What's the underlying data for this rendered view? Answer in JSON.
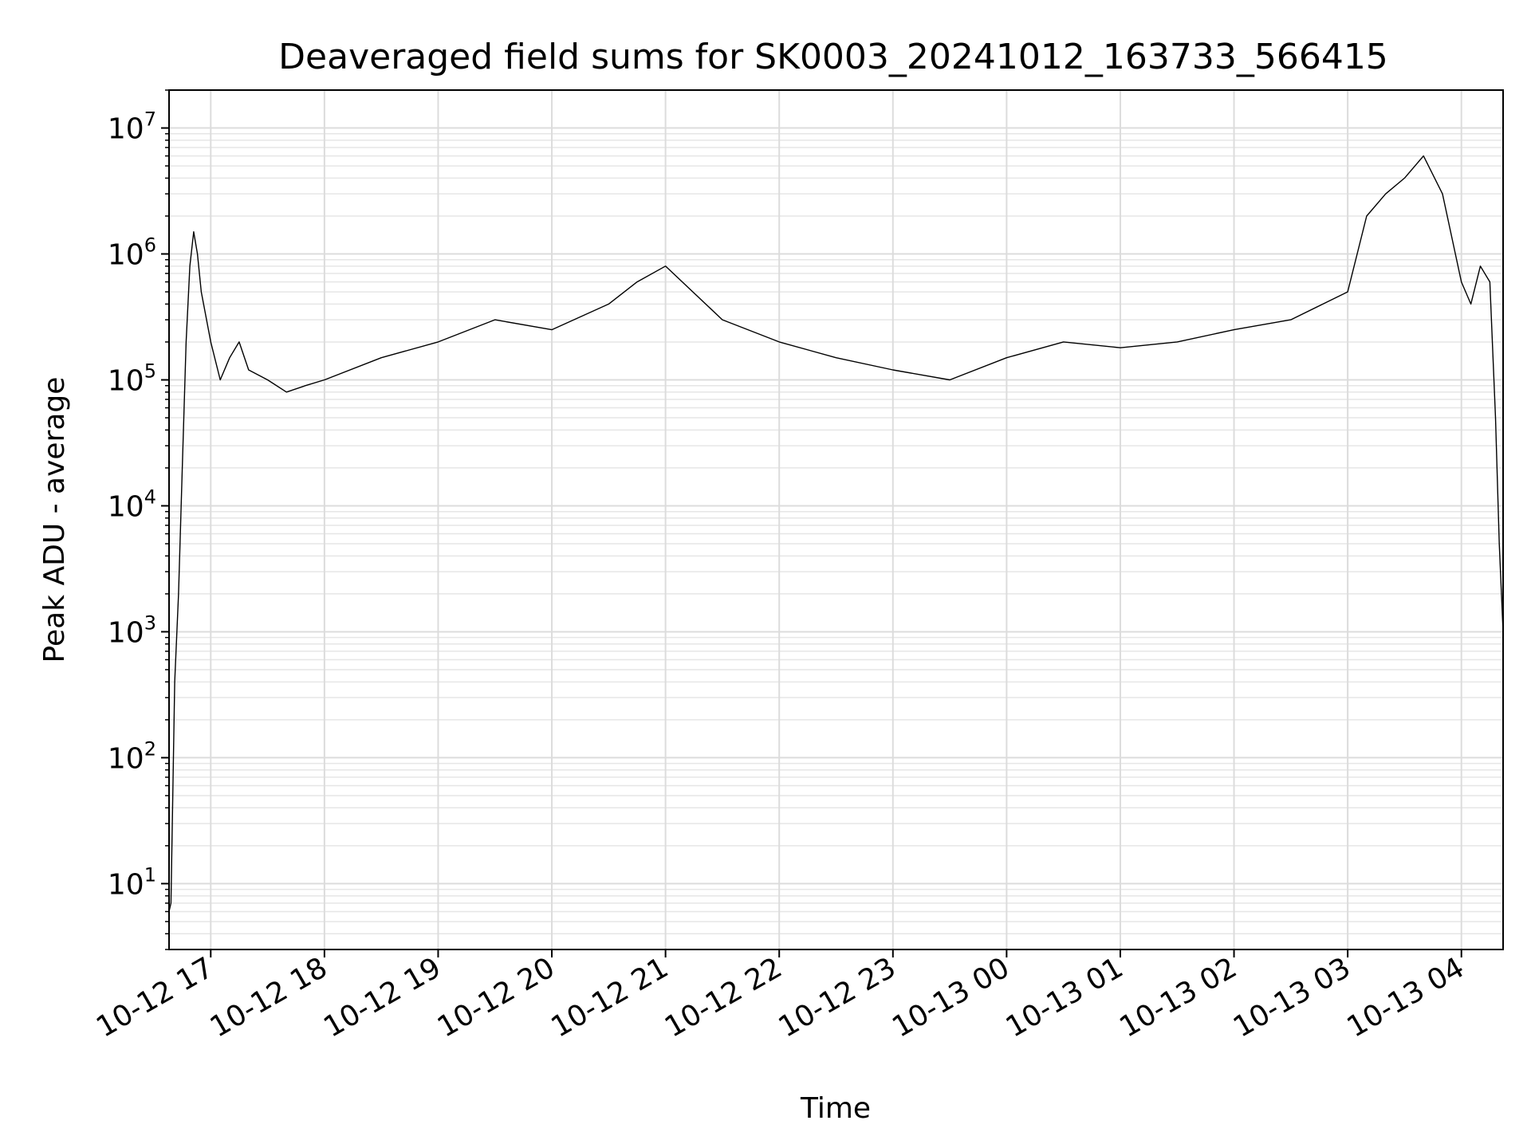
{
  "chart_data": {
    "type": "line",
    "title": "Deaveraged field sums for SK0003_20241012_163733_566415",
    "xlabel": "Time",
    "ylabel": "Peak ADU - average",
    "yscale": "log",
    "ylim": [
      3,
      20000000
    ],
    "xlim_hours": [
      "2024-10-12 16:38",
      "2024-10-13 04:22"
    ],
    "grid": true,
    "x_tick_labels": [
      "10-12 17",
      "10-12 18",
      "10-12 19",
      "10-12 20",
      "10-12 21",
      "10-12 22",
      "10-12 23",
      "10-13 00",
      "10-13 01",
      "10-13 02",
      "10-13 03",
      "10-13 04"
    ],
    "y_tick_exponents": [
      "1",
      "2",
      "3",
      "4",
      "5",
      "6",
      "7"
    ],
    "y_tick_base": "10",
    "line_color": "#000000",
    "series": [
      {
        "x": [
          "2024-10-12 16:38",
          "2024-10-12 16:39",
          "2024-10-12 16:41",
          "2024-10-12 16:43",
          "2024-10-12 16:45",
          "2024-10-12 16:47",
          "2024-10-12 16:49",
          "2024-10-12 16:51",
          "2024-10-12 16:53",
          "2024-10-12 16:55",
          "2024-10-12 17:00",
          "2024-10-12 17:05",
          "2024-10-12 17:10",
          "2024-10-12 17:15",
          "2024-10-12 17:20",
          "2024-10-12 17:30",
          "2024-10-12 17:40",
          "2024-10-12 17:50",
          "2024-10-12 18:00",
          "2024-10-12 18:30",
          "2024-10-12 19:00",
          "2024-10-12 19:30",
          "2024-10-12 20:00",
          "2024-10-12 20:30",
          "2024-10-12 20:45",
          "2024-10-12 21:00",
          "2024-10-12 21:30",
          "2024-10-12 22:00",
          "2024-10-12 22:30",
          "2024-10-12 23:00",
          "2024-10-12 23:30",
          "2024-10-13 00:00",
          "2024-10-13 00:30",
          "2024-10-13 01:00",
          "2024-10-13 01:30",
          "2024-10-13 02:00",
          "2024-10-13 02:30",
          "2024-10-13 03:00",
          "2024-10-13 03:10",
          "2024-10-13 03:20",
          "2024-10-13 03:30",
          "2024-10-13 03:40",
          "2024-10-13 03:50",
          "2024-10-13 04:00",
          "2024-10-13 04:05",
          "2024-10-13 04:10",
          "2024-10-13 04:15",
          "2024-10-13 04:18",
          "2024-10-13 04:20",
          "2024-10-13 04:22"
        ],
        "y": [
          6,
          7,
          400,
          2000,
          20000,
          200000,
          800000,
          1500000,
          1000000,
          500000,
          200000,
          100000,
          150000,
          200000,
          120000,
          100000,
          80000,
          90000,
          100000,
          150000,
          200000,
          300000,
          250000,
          400000,
          600000,
          800000,
          300000,
          200000,
          150000,
          120000,
          100000,
          150000,
          200000,
          180000,
          200000,
          250000,
          300000,
          500000,
          2000000,
          3000000,
          4000000,
          6000000,
          3000000,
          600000,
          400000,
          800000,
          600000,
          50000,
          5000,
          1000
        ]
      }
    ]
  }
}
